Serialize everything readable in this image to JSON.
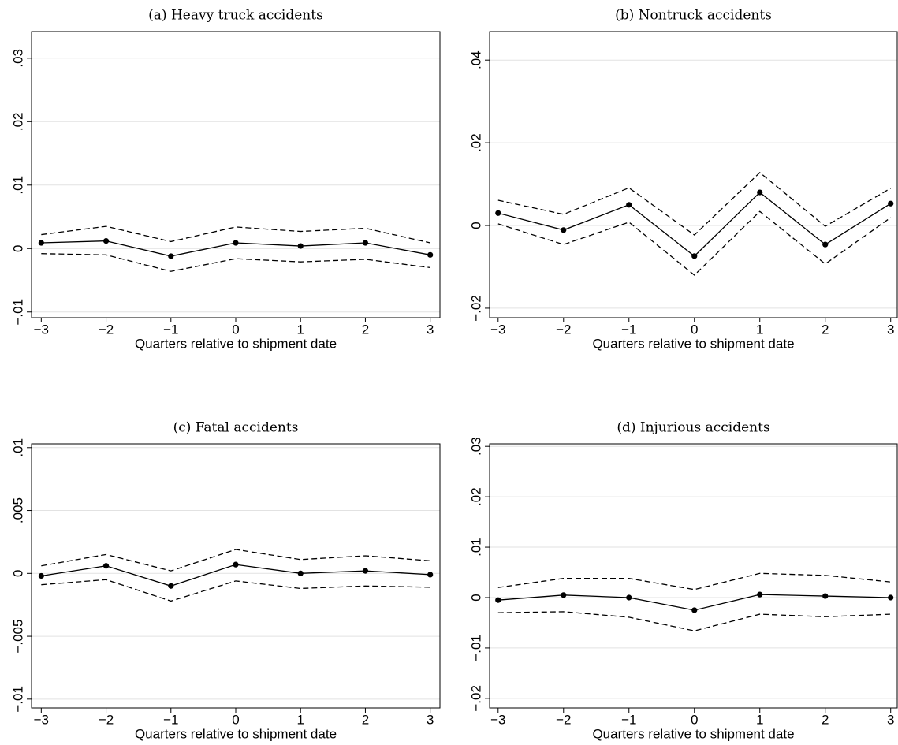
{
  "chart_data": [
    {
      "type": "line",
      "title": "(a) Heavy truck accidents",
      "xlabel": "Quarters relative to shipment date",
      "x": [
        -3,
        -2,
        -1,
        0,
        1,
        2,
        3
      ],
      "xlim": [
        -3.15,
        3.15
      ],
      "xticks": [
        {
          "value": -3,
          "label": "−3"
        },
        {
          "value": -2,
          "label": "−2"
        },
        {
          "value": -1,
          "label": "−1"
        },
        0,
        1,
        2,
        3
      ],
      "ylim": [
        -0.0109,
        0.0342
      ],
      "yticks": [
        {
          "value": -0.01,
          "label": "−.01"
        },
        0,
        {
          "value": 0.01,
          "label": ".01"
        },
        {
          "value": 0.02,
          "label": ".02"
        },
        {
          "value": 0.03,
          "label": ".03"
        }
      ],
      "grid": true,
      "series": [
        {
          "color": "#000000",
          "style": "solid",
          "marker": true,
          "values": [
            0.0009,
            0.0012,
            -0.0012,
            0.0009,
            0.0004,
            0.0009,
            -0.001
          ]
        },
        {
          "color": "#000000",
          "style": "dashed",
          "marker": false,
          "values": [
            0.0022,
            0.0035,
            0.0011,
            0.0034,
            0.0027,
            0.0032,
            0.0009
          ]
        },
        {
          "color": "#000000",
          "style": "dashed",
          "marker": false,
          "values": [
            -0.0008,
            -0.001,
            -0.0036,
            -0.0016,
            -0.0021,
            -0.0017,
            -0.003
          ]
        }
      ]
    },
    {
      "type": "line",
      "title": "(b) Nontruck accidents",
      "xlabel": "Quarters relative to shipment date",
      "x": [
        -3,
        -2,
        -1,
        0,
        1,
        2,
        3
      ],
      "xlim": [
        -3.13,
        3.1
      ],
      "xticks": [
        {
          "value": -3,
          "label": "−3"
        },
        {
          "value": -2,
          "label": "−2"
        },
        {
          "value": -1,
          "label": "−1"
        },
        0,
        1,
        2,
        3
      ],
      "ylim": [
        -0.0223,
        0.0469
      ],
      "yticks": [
        {
          "value": -0.02,
          "label": "−.02"
        },
        0,
        {
          "value": 0.02,
          "label": ".02"
        },
        {
          "value": 0.04,
          "label": ".04"
        }
      ],
      "grid": true,
      "series": [
        {
          "color": "#000000",
          "style": "solid",
          "marker": true,
          "values": [
            0.003,
            -0.0011,
            0.005,
            -0.0074,
            0.008,
            -0.0046,
            0.0053
          ]
        },
        {
          "color": "#000000",
          "style": "dashed",
          "marker": false,
          "values": [
            0.0061,
            0.0027,
            0.0091,
            -0.0023,
            0.0128,
            -0.0002,
            0.009
          ]
        },
        {
          "color": "#000000",
          "style": "dashed",
          "marker": false,
          "values": [
            0.0004,
            -0.0046,
            0.0008,
            -0.012,
            0.0034,
            -0.0093,
            0.0019
          ]
        }
      ]
    },
    {
      "type": "line",
      "title": "(c) Fatal accidents",
      "xlabel": "Quarters relative to shipment date",
      "x": [
        -3,
        -2,
        -1,
        0,
        1,
        2,
        3
      ],
      "xlim": [
        -3.15,
        3.15
      ],
      "xticks": [
        {
          "value": -3,
          "label": "−3"
        },
        {
          "value": -2,
          "label": "−2"
        },
        {
          "value": -1,
          "label": "−1"
        },
        0,
        1,
        2,
        3
      ],
      "ylim": [
        -0.0107,
        0.0103
      ],
      "yticks": [
        {
          "value": -0.01,
          "label": "−.01"
        },
        {
          "value": -0.005,
          "label": "−.005"
        },
        0,
        {
          "value": 0.005,
          "label": ".005"
        },
        {
          "value": 0.01,
          "label": ".01"
        }
      ],
      "grid": true,
      "series": [
        {
          "color": "#000000",
          "style": "solid",
          "marker": true,
          "values": [
            -0.0002,
            0.0006,
            -0.001,
            0.0007,
            0,
            0.0002,
            -0.0001
          ]
        },
        {
          "color": "#000000",
          "style": "dashed",
          "marker": false,
          "values": [
            0.0006,
            0.0015,
            0.0002,
            0.0019,
            0.0011,
            0.0014,
            0.001
          ]
        },
        {
          "color": "#000000",
          "style": "dashed",
          "marker": false,
          "values": [
            -0.0009,
            -0.0005,
            -0.0022,
            -0.0006,
            -0.0012,
            -0.001,
            -0.0011
          ]
        }
      ]
    },
    {
      "type": "line",
      "title": "(d) Injurious accidents",
      "xlabel": "Quarters relative to shipment date",
      "x": [
        -3,
        -2,
        -1,
        0,
        1,
        2,
        3
      ],
      "xlim": [
        -3.13,
        3.1
      ],
      "xticks": [
        {
          "value": -3,
          "label": "−3"
        },
        {
          "value": -2,
          "label": "−2"
        },
        {
          "value": -1,
          "label": "−1"
        },
        0,
        1,
        2,
        3
      ],
      "ylim": [
        -0.0219,
        0.0305
      ],
      "yticks": [
        {
          "value": -0.02,
          "label": "−.02"
        },
        {
          "value": -0.01,
          "label": "−.01"
        },
        0,
        {
          "value": 0.01,
          "label": ".01"
        },
        {
          "value": 0.02,
          "label": ".02"
        },
        {
          "value": 0.03,
          "label": ".03"
        }
      ],
      "grid": true,
      "series": [
        {
          "color": "#000000",
          "style": "solid",
          "marker": true,
          "values": [
            -0.0005,
            0.0005,
            0,
            -0.0025,
            0.0006,
            0.0003,
            0
          ]
        },
        {
          "color": "#000000",
          "style": "dashed",
          "marker": false,
          "values": [
            0.002,
            0.0038,
            0.0038,
            0.0016,
            0.0048,
            0.0044,
            0.0031
          ]
        },
        {
          "color": "#000000",
          "style": "dashed",
          "marker": false,
          "values": [
            -0.003,
            -0.0028,
            -0.0039,
            -0.0066,
            -0.0033,
            -0.0038,
            -0.0033
          ]
        }
      ]
    }
  ]
}
